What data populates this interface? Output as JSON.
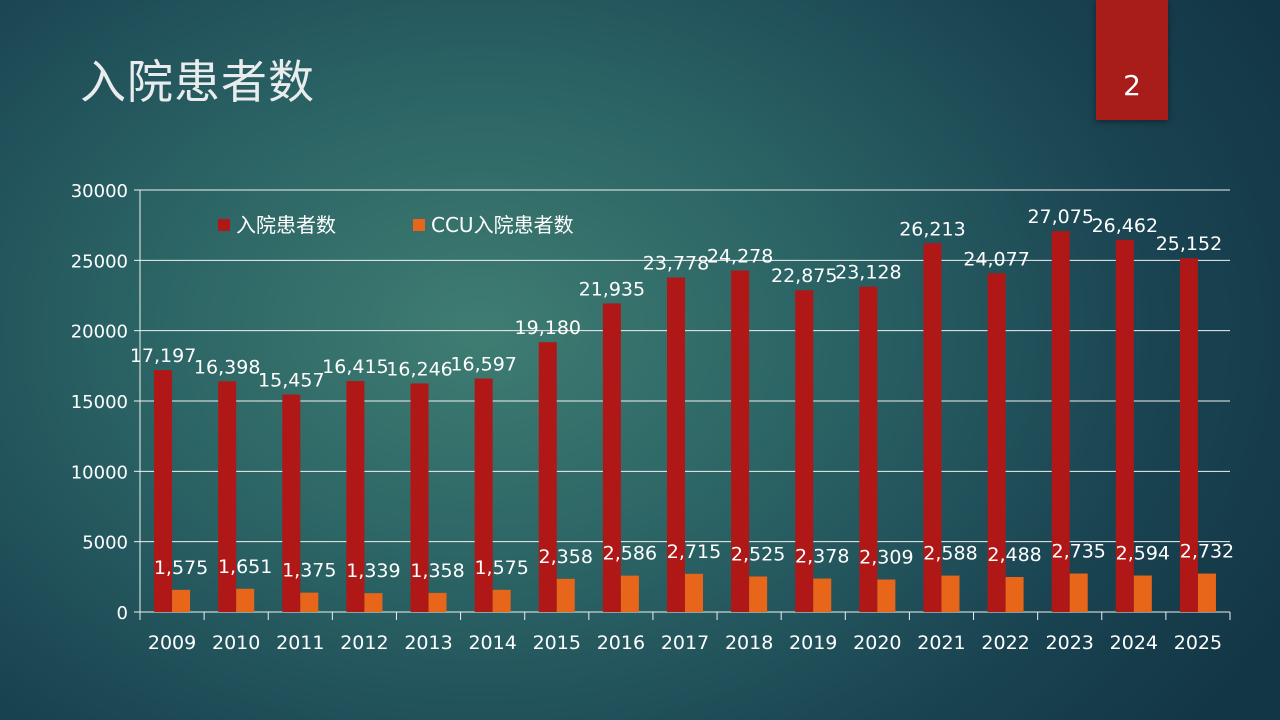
{
  "slide": {
    "title": "入院患者数",
    "page_number": "2"
  },
  "colors": {
    "series1": "#b01717",
    "series2": "#e8661a",
    "accent_tab": "#a81c1a"
  },
  "chart_data": {
    "type": "bar",
    "title": "",
    "xlabel": "",
    "ylabel": "",
    "ylim": [
      0,
      30000
    ],
    "yticks": [
      0,
      5000,
      10000,
      15000,
      20000,
      25000,
      30000
    ],
    "grid": true,
    "legend_position": "top-left",
    "categories": [
      "2009",
      "2010",
      "2011",
      "2012",
      "2013",
      "2014",
      "2015",
      "2016",
      "2017",
      "2018",
      "2019",
      "2020",
      "2021",
      "2022",
      "2023",
      "2024",
      "2025"
    ],
    "series": [
      {
        "name": "入院患者数",
        "color": "#b01717",
        "values": [
          17197,
          16398,
          15457,
          16415,
          16246,
          16597,
          19180,
          21935,
          23778,
          24278,
          22875,
          23128,
          26213,
          24077,
          27075,
          26462,
          25152
        ],
        "labels": [
          "17,197",
          "16,398",
          "15,457",
          "16,415",
          "16,246",
          "16,597",
          "19,180",
          "21,935",
          "23,778",
          "24,278",
          "22,875",
          "23,128",
          "26,213",
          "24,077",
          "27,075",
          "26,462",
          "25,152"
        ]
      },
      {
        "name": "CCU入院患者数",
        "color": "#e8661a",
        "values": [
          1575,
          1651,
          1375,
          1339,
          1358,
          1575,
          2358,
          2586,
          2715,
          2525,
          2378,
          2309,
          2588,
          2488,
          2735,
          2594,
          2732
        ],
        "labels": [
          "1,575",
          "1,651",
          "1,375",
          "1,339",
          "1,358",
          "1,575",
          "2,358",
          "2,586",
          "2,715",
          "2,525",
          "2,378",
          "2,309",
          "2,588",
          "2,488",
          "2,735",
          "2,594",
          "2,732"
        ]
      }
    ]
  }
}
